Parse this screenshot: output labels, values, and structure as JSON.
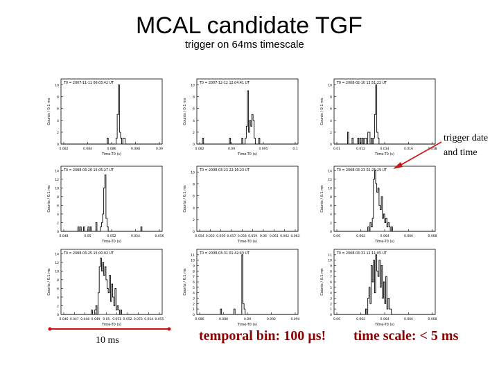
{
  "page": {
    "title": "MCAL candidate TGF",
    "subtitle": "trigger on 64ms timescale"
  },
  "annotations": {
    "trigger_label_line1": "trigger date",
    "trigger_label_line2": "and time",
    "scale_bar_label": "10 ms",
    "temporal_bin": "temporal bin: 100 µs!",
    "time_scale": "time scale: < 5 ms",
    "arrow_color": "#cc1111"
  },
  "chart_data": [
    {
      "type": "bar",
      "header": "T0 = 2007-11-11 06:03:42 UT",
      "ylabel": "Counts / 0.1 ms",
      "xlabel": "Time-T0 (s)",
      "yticks": [
        "0",
        "2",
        "4",
        "6",
        "8",
        "10"
      ],
      "ylim": [
        0,
        11
      ],
      "xticks": [
        "0.082",
        "0.084",
        "0.086",
        "0.088",
        "0.09"
      ],
      "series": [
        {
          "values": [
            0,
            0,
            0,
            0,
            0,
            0,
            0,
            0,
            0,
            0,
            0,
            0,
            0,
            0,
            0,
            0,
            0,
            0,
            0,
            0,
            0,
            0,
            0,
            0,
            0,
            0,
            0,
            0,
            0,
            0,
            0,
            0,
            0,
            0,
            0,
            0,
            0,
            0,
            0,
            0,
            0,
            1,
            0,
            0,
            0,
            0,
            0,
            0,
            0,
            1,
            5,
            10,
            2,
            1,
            0,
            1,
            1,
            0,
            0,
            0,
            0,
            0,
            0,
            0,
            0,
            0,
            0,
            0,
            0,
            0,
            0,
            0,
            0,
            0,
            0,
            0,
            0,
            0,
            0,
            0,
            0,
            0,
            0,
            0,
            0,
            0,
            0,
            0,
            0,
            0
          ]
        }
      ]
    },
    {
      "type": "bar",
      "header": "T0 = 2007-12-12 12:04:41 UT",
      "ylabel": "Counts / 0.1 ms",
      "xlabel": "Time-T0 (s)",
      "yticks": [
        "0",
        "2",
        "4",
        "6",
        "8",
        "10"
      ],
      "ylim": [
        0,
        11
      ],
      "xticks": [
        "0.082",
        "0.09",
        "0.095",
        "0.1"
      ],
      "series": [
        {
          "values": [
            0,
            0,
            0,
            0,
            0,
            1,
            0,
            0,
            0,
            0,
            0,
            0,
            0,
            0,
            0,
            0,
            0,
            0,
            0,
            0,
            0,
            0,
            0,
            0,
            0,
            0,
            0,
            0,
            0,
            1,
            0,
            0,
            0,
            0,
            0,
            0,
            0,
            0,
            0,
            0,
            1,
            0,
            0,
            1,
            3,
            9,
            2,
            4,
            3,
            5,
            4,
            1,
            0,
            0,
            0,
            1,
            0,
            0,
            0,
            0,
            0,
            0,
            0,
            0,
            0,
            0,
            0,
            0,
            0,
            0,
            0,
            0,
            0,
            0,
            0,
            0,
            0,
            0,
            0,
            0,
            0,
            0,
            0,
            0,
            0,
            0,
            0,
            0,
            0,
            0
          ]
        }
      ]
    },
    {
      "type": "bar",
      "header": "T0 = 2008-02-10 13:51:22 UT",
      "ylabel": "Counts / 0.1 ms",
      "xlabel": "Time-T0 (s)",
      "yticks": [
        "0",
        "2",
        "4",
        "6",
        "8",
        "10"
      ],
      "ylim": [
        0,
        11
      ],
      "xticks": [
        "0.01",
        "0.012",
        "0.014",
        "0.016",
        "0.018"
      ],
      "series": [
        {
          "values": [
            0,
            0,
            0,
            0,
            0,
            0,
            0,
            0,
            0,
            0,
            0,
            0,
            2,
            0,
            0,
            0,
            1,
            0,
            0,
            0,
            0,
            1,
            0,
            1,
            0,
            1,
            0,
            1,
            1,
            0,
            2,
            2,
            0,
            1,
            0,
            1,
            5,
            10,
            2,
            1,
            0,
            0,
            0,
            0,
            0,
            0,
            0,
            0,
            0,
            0,
            0,
            0,
            0,
            0,
            0,
            0,
            0,
            0,
            0,
            0,
            0,
            0,
            0,
            0,
            0,
            0,
            0,
            0,
            0,
            0,
            0,
            0,
            0,
            0,
            0,
            0,
            0,
            0,
            0,
            0,
            0,
            0,
            0,
            0,
            0,
            0,
            0,
            0,
            0,
            0
          ]
        }
      ]
    },
    {
      "type": "bar",
      "header": "T0 = 2008-03-20 15:05:27 UT",
      "ylabel": "Counts / 0.1 ms",
      "xlabel": "Time-T0 (s)",
      "yticks": [
        "0",
        "2",
        "4",
        "6",
        "8",
        "10",
        "12",
        "14"
      ],
      "ylim": [
        0,
        15
      ],
      "xticks": [
        "0.048",
        "0.05",
        "0.052",
        "0.054",
        "0.056"
      ],
      "series": [
        {
          "values": [
            0,
            0,
            0,
            0,
            0,
            0,
            0,
            0,
            0,
            0,
            0,
            0,
            0,
            0,
            0,
            1,
            0,
            1,
            0,
            0,
            1,
            0,
            0,
            0,
            1,
            0,
            1,
            0,
            0,
            0,
            0,
            2,
            0,
            0,
            0,
            1,
            2,
            4,
            10,
            13,
            3,
            1,
            0,
            0,
            0,
            0,
            0,
            0,
            0,
            0,
            0,
            0,
            0,
            0,
            0,
            0,
            0,
            0,
            0,
            0,
            0,
            0,
            0,
            0,
            0,
            0,
            0,
            0,
            0,
            0,
            0,
            1,
            0,
            0,
            0,
            0,
            0,
            0,
            0,
            0,
            0,
            0,
            0,
            0,
            0,
            0,
            0,
            0,
            0,
            0
          ]
        }
      ]
    },
    {
      "type": "bar",
      "header": "T0 = 2008-03-23 22:16:23 UT",
      "ylabel": "Counts / 0.1 ms",
      "xlabel": "Time-T0 (s)",
      "yticks": [
        "0",
        "2",
        "4",
        "6",
        "8",
        "10"
      ],
      "ylim": [
        0,
        11
      ],
      "xticks": [
        "0.054",
        "0.055",
        "0.056",
        "0.057",
        "0.058",
        "0.059",
        "0.06",
        "0.061",
        "0.062",
        "0.063"
      ],
      "series": [
        {
          "values": [
            0,
            0,
            0,
            0,
            0,
            0,
            0,
            0,
            0,
            0,
            0,
            0,
            0,
            0,
            0,
            0,
            0,
            0,
            0,
            0,
            0,
            0,
            0,
            0,
            0,
            0,
            0,
            0,
            0,
            0,
            0,
            0,
            0,
            0,
            0,
            0,
            0,
            0,
            0,
            0,
            0,
            0,
            0,
            0,
            0,
            0,
            0,
            0,
            0,
            0,
            0,
            0,
            0,
            0,
            0,
            0,
            0,
            0,
            0,
            0,
            0,
            0,
            0,
            0,
            0,
            0,
            0,
            0,
            0,
            0,
            0,
            0,
            0,
            0,
            0,
            0,
            0,
            0,
            0,
            0,
            0,
            0,
            0,
            0,
            0,
            0,
            0,
            0,
            0,
            0
          ]
        }
      ]
    },
    {
      "type": "bar",
      "header": "T0 = 2008-03-23 02:25:29 UT",
      "ylabel": "Counts / 0.1 ms",
      "xlabel": "Time-T0 (s)",
      "yticks": [
        "0",
        "2",
        "4",
        "6",
        "8",
        "10",
        "12",
        "14"
      ],
      "ylim": [
        0,
        15
      ],
      "xticks": [
        "0.06",
        "0.062",
        "0.064",
        "0.066",
        "0.068"
      ],
      "series": [
        {
          "values": [
            0,
            0,
            0,
            0,
            0,
            0,
            0,
            0,
            0,
            0,
            0,
            0,
            0,
            0,
            0,
            0,
            0,
            0,
            0,
            0,
            0,
            0,
            0,
            0,
            0,
            0,
            0,
            0,
            0,
            0,
            1,
            0,
            2,
            1,
            3,
            12,
            14,
            11,
            9,
            10,
            6,
            5,
            8,
            3,
            4,
            2,
            3,
            1,
            2,
            1,
            0,
            1,
            0,
            0,
            0,
            0,
            0,
            0,
            0,
            0,
            0,
            0,
            0,
            0,
            0,
            0,
            0,
            0,
            0,
            0,
            0,
            0,
            0,
            0,
            0,
            0,
            0,
            0,
            0,
            0,
            0,
            0,
            0,
            0,
            0,
            0,
            0,
            0,
            0,
            0
          ]
        }
      ]
    },
    {
      "type": "bar",
      "header": "T0 = 2008-03-25 15:00:02 UT",
      "ylabel": "Counts / 0.1 ms",
      "xlabel": "Time-T0 (s)",
      "yticks": [
        "0",
        "2",
        "4",
        "6",
        "8",
        "10",
        "12",
        "14"
      ],
      "ylim": [
        0,
        15
      ],
      "xticks": [
        "0.046",
        "0.047",
        "0.048",
        "0.049",
        "0.05",
        "0.051",
        "0.052",
        "0.053",
        "0.054",
        "0.055"
      ],
      "series": [
        {
          "values": [
            0,
            0,
            0,
            0,
            0,
            0,
            0,
            0,
            0,
            0,
            0,
            0,
            0,
            0,
            0,
            0,
            0,
            0,
            0,
            0,
            0,
            0,
            0,
            0,
            0,
            0,
            0,
            1,
            0,
            0,
            1,
            2,
            0,
            5,
            11,
            13,
            10,
            12,
            9,
            11,
            8,
            6,
            5,
            9,
            3,
            7,
            4,
            2,
            6,
            1,
            2,
            1,
            0,
            1,
            0,
            0,
            0,
            0,
            0,
            0,
            0,
            0,
            0,
            0,
            0,
            0,
            0,
            0,
            0,
            0,
            0,
            0,
            0,
            0,
            0,
            0,
            0,
            0,
            0,
            0,
            0,
            0,
            0,
            0,
            0,
            0,
            0,
            0,
            0,
            0
          ]
        }
      ]
    },
    {
      "type": "bar",
      "header": "T0 = 2008-03-31 01:42:43 UT",
      "ylabel": "Counts / 0.1 ms",
      "xlabel": "Time-T0 (s)",
      "yticks": [
        "0",
        "1",
        "2",
        "3",
        "4",
        "5",
        "6",
        "7",
        "8",
        "9",
        "10",
        "11"
      ],
      "ylim": [
        0,
        12
      ],
      "xticks": [
        "0.086",
        "0.088",
        "0.09",
        "0.092",
        "0.094"
      ],
      "series": [
        {
          "values": [
            0,
            0,
            0,
            0,
            0,
            0,
            0,
            0,
            0,
            0,
            0,
            0,
            0,
            0,
            0,
            0,
            0,
            0,
            0,
            0,
            0,
            1,
            0,
            0,
            0,
            0,
            0,
            0,
            0,
            0,
            0,
            0,
            0,
            1,
            0,
            0,
            0,
            0,
            0,
            0,
            11,
            2,
            1,
            0,
            0,
            0,
            0,
            0,
            0,
            0,
            0,
            0,
            0,
            0,
            0,
            0,
            0,
            0,
            0,
            0,
            0,
            0,
            0,
            0,
            0,
            0,
            0,
            0,
            0,
            0,
            0,
            0,
            0,
            0,
            0,
            0,
            0,
            0,
            0,
            0,
            0,
            0,
            0,
            0,
            0,
            0,
            0,
            0,
            0,
            0
          ]
        }
      ]
    },
    {
      "type": "bar",
      "header": "T0 = 2008-03-31 12:11:05 UT",
      "ylabel": "Counts / 0.1 ms",
      "xlabel": "Time-T0 (s)",
      "yticks": [
        "0",
        "1",
        "2",
        "3",
        "4",
        "5",
        "6",
        "7",
        "8",
        "9",
        "10",
        "11"
      ],
      "ylim": [
        0,
        12
      ],
      "xticks": [
        "0.06",
        "0.062",
        "0.064",
        "0.066",
        "0.068"
      ],
      "series": [
        {
          "values": [
            0,
            0,
            0,
            0,
            0,
            0,
            0,
            0,
            0,
            0,
            0,
            0,
            0,
            0,
            0,
            0,
            0,
            0,
            0,
            0,
            0,
            0,
            0,
            0,
            0,
            0,
            0,
            0,
            1,
            0,
            3,
            5,
            2,
            9,
            6,
            10,
            4,
            11,
            8,
            7,
            10,
            5,
            9,
            3,
            6,
            2,
            7,
            1,
            3,
            1,
            1,
            0,
            0,
            0,
            0,
            0,
            0,
            0,
            0,
            0,
            0,
            0,
            0,
            0,
            0,
            0,
            0,
            0,
            0,
            0,
            0,
            0,
            0,
            0,
            0,
            0,
            0,
            0,
            0,
            0,
            0,
            0,
            0,
            0,
            0,
            0,
            0,
            0,
            0,
            0
          ]
        }
      ]
    }
  ]
}
